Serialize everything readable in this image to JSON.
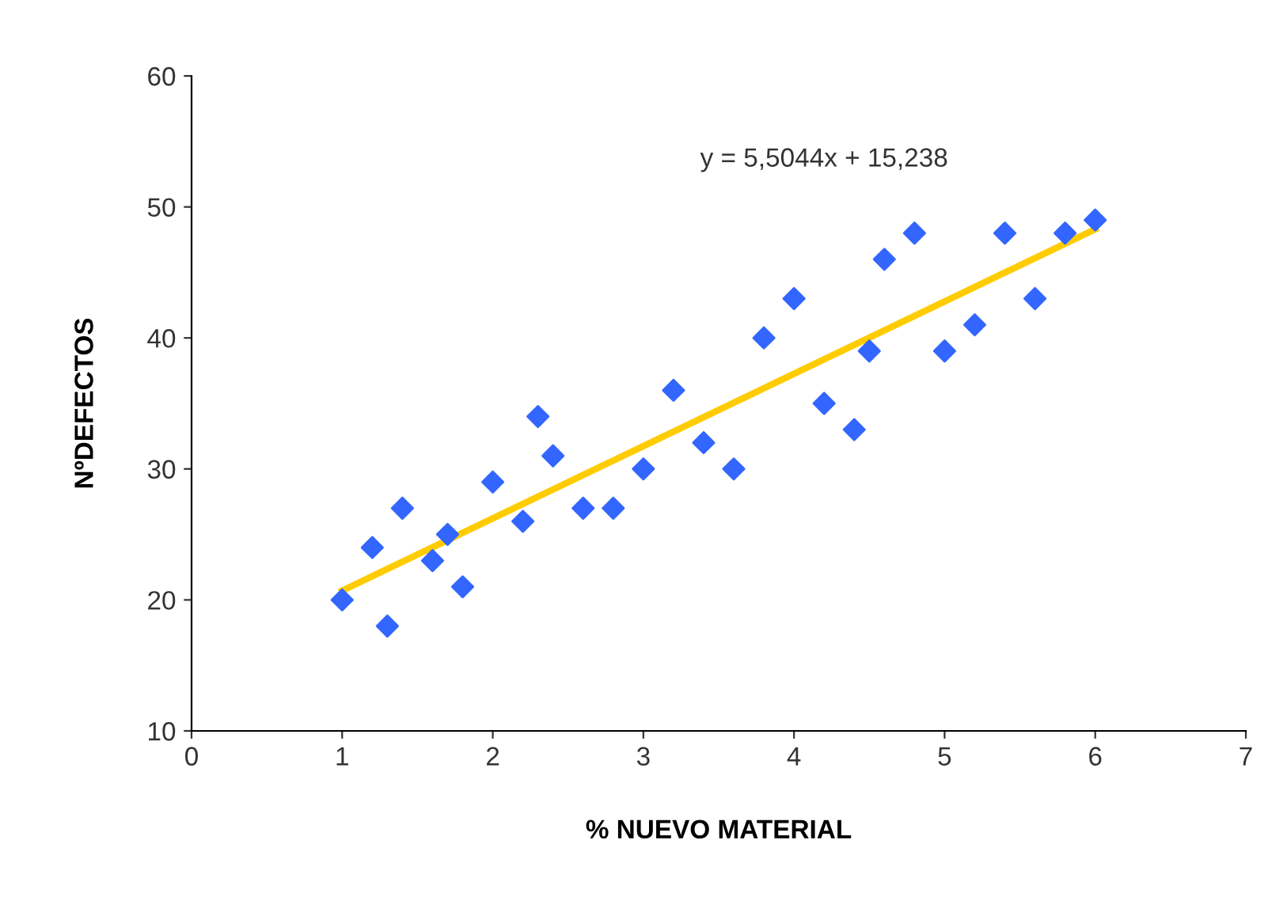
{
  "chart_data": {
    "type": "scatter",
    "xlabel": "% NUEVO MATERIAL",
    "ylabel": "NºDEFECTOS",
    "xlim": [
      0,
      7
    ],
    "xticks": [
      0,
      1,
      2,
      3,
      4,
      5,
      6,
      7
    ],
    "ylim": [
      10,
      60
    ],
    "yticks": [
      10,
      20,
      30,
      40,
      50,
      60
    ],
    "grid": false,
    "series": [
      {
        "marker": "diamond",
        "color": "#3366ff",
        "x": [
          1,
          1.2,
          1.3,
          1.4,
          1.6,
          1.7,
          1.8,
          2,
          2.2,
          2.3,
          2.4,
          2.6,
          2.8,
          3,
          3.2,
          3.4,
          3.6,
          3.8,
          4,
          4.2,
          4.4,
          4.5,
          4.6,
          4.8,
          5,
          5.2,
          5.4,
          5.6,
          5.8,
          6
        ],
        "values": [
          20,
          24,
          18,
          27,
          23,
          25,
          21,
          29,
          26,
          34,
          31,
          27,
          27,
          30,
          36,
          32,
          30,
          40,
          43,
          35,
          33,
          39,
          46,
          48,
          39,
          41,
          48,
          43,
          48,
          49
        ]
      },
      {
        "type": "line",
        "color": "#ffcc00",
        "x": [
          1,
          6
        ],
        "values": [
          20.7,
          48.3
        ]
      }
    ],
    "annotations": [
      "y = 5,5044x + 15,238"
    ]
  }
}
